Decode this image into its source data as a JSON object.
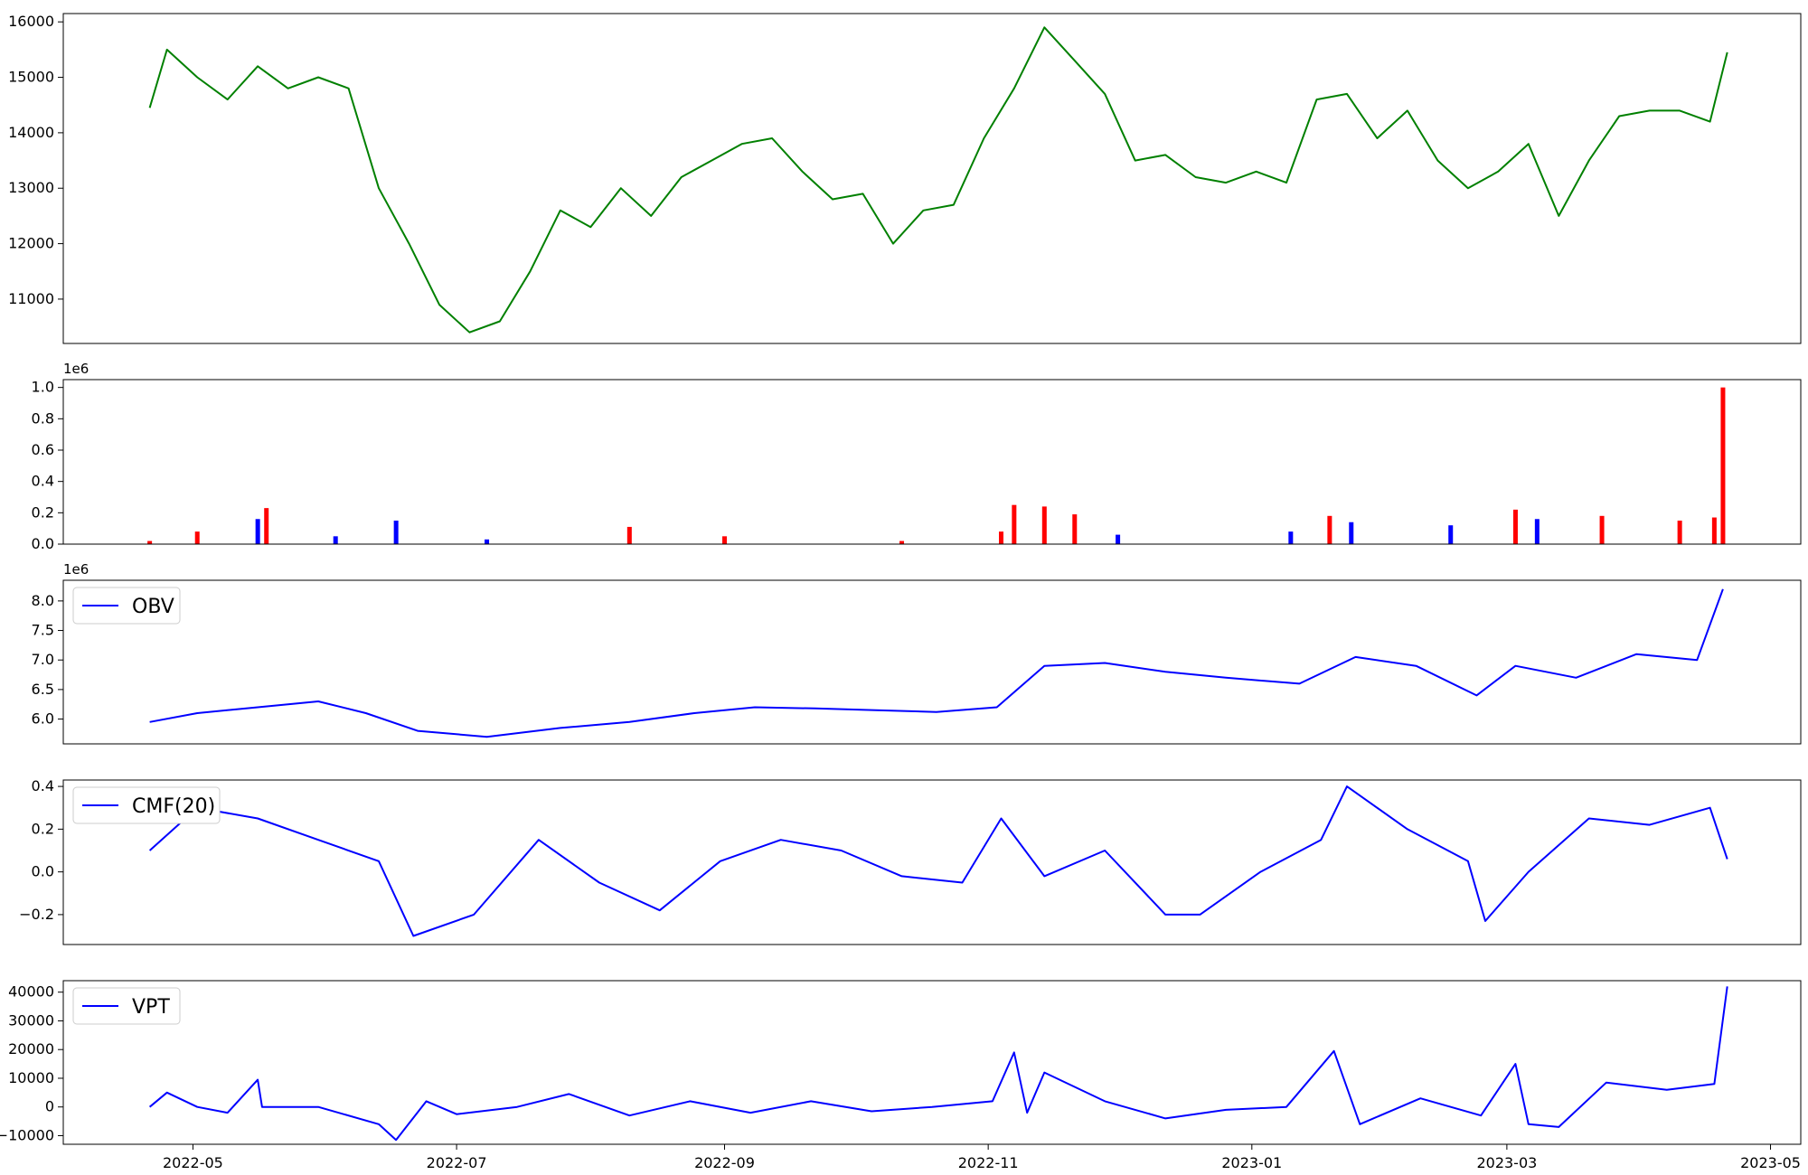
{
  "chart_data": [
    {
      "type": "line",
      "name": "price",
      "color": "#008000",
      "ylim": [
        10200,
        16150
      ],
      "yticks": [
        11000,
        12000,
        13000,
        14000,
        15000,
        16000
      ],
      "ytick_labels": [
        "11000",
        "12000",
        "13000",
        "14000",
        "15000",
        "16000"
      ],
      "x": [
        "2022-04-21",
        "2022-04-25",
        "2022-05-02",
        "2022-05-09",
        "2022-05-16",
        "2022-05-23",
        "2022-05-30",
        "2022-06-06",
        "2022-06-13",
        "2022-06-20",
        "2022-06-27",
        "2022-07-04",
        "2022-07-11",
        "2022-07-18",
        "2022-07-25",
        "2022-08-01",
        "2022-08-08",
        "2022-08-15",
        "2022-08-22",
        "2022-08-29",
        "2022-09-05",
        "2022-09-12",
        "2022-09-19",
        "2022-09-26",
        "2022-10-03",
        "2022-10-10",
        "2022-10-17",
        "2022-10-24",
        "2022-10-31",
        "2022-11-07",
        "2022-11-14",
        "2022-11-21",
        "2022-11-28",
        "2022-12-05",
        "2022-12-12",
        "2022-12-19",
        "2022-12-26",
        "2023-01-02",
        "2023-01-09",
        "2023-01-16",
        "2023-01-23",
        "2023-01-30",
        "2023-02-06",
        "2023-02-13",
        "2023-02-20",
        "2023-02-27",
        "2023-03-06",
        "2023-03-13",
        "2023-03-20",
        "2023-03-27",
        "2023-04-03",
        "2023-04-10",
        "2023-04-17",
        "2023-04-21"
      ],
      "values": [
        14450,
        15500,
        15000,
        14600,
        15200,
        14800,
        15000,
        14800,
        13000,
        12000,
        10900,
        10400,
        10600,
        11500,
        12600,
        12300,
        13000,
        12500,
        13200,
        13500,
        13800,
        13900,
        13300,
        12800,
        12900,
        12000,
        12600,
        12700,
        13900,
        14800,
        15900,
        15300,
        14700,
        13500,
        13600,
        13200,
        13100,
        13300,
        13100,
        14600,
        14700,
        13900,
        14400,
        13500,
        13000,
        13300,
        13800,
        12500,
        13500,
        14300,
        14400,
        14400,
        14200,
        15450
      ]
    },
    {
      "type": "bar",
      "name": "volume",
      "scale_label": "1e6",
      "ylim": [
        0,
        1.05
      ],
      "yticks": [
        0,
        0.2,
        0.4,
        0.6,
        0.8,
        1.0
      ],
      "ytick_labels": [
        "0.0",
        "0.2",
        "0.4",
        "0.6",
        "0.8",
        "1.0"
      ],
      "colors": {
        "up": "#ff0000",
        "down": "#0000ff"
      },
      "x": [
        "2022-04-21",
        "2022-05-02",
        "2022-05-16",
        "2022-05-18",
        "2022-06-03",
        "2022-06-17",
        "2022-07-08",
        "2022-08-10",
        "2022-09-01",
        "2022-10-12",
        "2022-11-04",
        "2022-11-07",
        "2022-11-14",
        "2022-11-21",
        "2022-12-01",
        "2023-01-10",
        "2023-01-19",
        "2023-01-24",
        "2023-02-16",
        "2023-03-03",
        "2023-03-08",
        "2023-03-23",
        "2023-04-10",
        "2023-04-18",
        "2023-04-20"
      ],
      "values": [
        0.02,
        0.08,
        0.16,
        0.23,
        0.05,
        0.15,
        0.03,
        0.11,
        0.05,
        0.02,
        0.08,
        0.25,
        0.24,
        0.19,
        0.06,
        0.08,
        0.18,
        0.14,
        0.12,
        0.22,
        0.16,
        0.18,
        0.15,
        0.17,
        1.0
      ],
      "dir": [
        "up",
        "up",
        "down",
        "up",
        "down",
        "down",
        "down",
        "up",
        "up",
        "up",
        "up",
        "up",
        "up",
        "up",
        "down",
        "down",
        "up",
        "down",
        "down",
        "up",
        "down",
        "up",
        "up",
        "up",
        "up"
      ]
    },
    {
      "type": "line",
      "name": "OBV",
      "legend": "OBV",
      "scale_label": "1e6",
      "color": "#0000ff",
      "ylim": [
        5.58,
        8.35
      ],
      "yticks": [
        6.0,
        6.5,
        7.0,
        7.5,
        8.0
      ],
      "ytick_labels": [
        "6.0",
        "6.5",
        "7.0",
        "7.5",
        "8.0"
      ],
      "x": [
        "2022-04-21",
        "2022-05-02",
        "2022-05-16",
        "2022-05-30",
        "2022-06-10",
        "2022-06-22",
        "2022-07-08",
        "2022-07-25",
        "2022-08-10",
        "2022-08-25",
        "2022-09-08",
        "2022-09-22",
        "2022-10-06",
        "2022-10-20",
        "2022-11-03",
        "2022-11-14",
        "2022-11-28",
        "2022-12-12",
        "2022-12-26",
        "2023-01-12",
        "2023-01-25",
        "2023-02-08",
        "2023-02-22",
        "2023-03-03",
        "2023-03-17",
        "2023-03-31",
        "2023-04-14",
        "2023-04-20"
      ],
      "values": [
        5.95,
        6.1,
        6.2,
        6.3,
        6.1,
        5.8,
        5.7,
        5.85,
        5.95,
        6.1,
        6.2,
        6.18,
        6.15,
        6.12,
        6.2,
        6.9,
        6.95,
        6.8,
        6.7,
        6.6,
        7.05,
        6.9,
        6.4,
        6.9,
        6.7,
        7.1,
        7.0,
        8.2
      ]
    },
    {
      "type": "line",
      "name": "CMF",
      "legend": "CMF(20)",
      "color": "#0000ff",
      "ylim": [
        -0.34,
        0.43
      ],
      "yticks": [
        -0.2,
        0.0,
        0.2,
        0.4
      ],
      "ytick_labels": [
        "−0.2",
        "0.0",
        "0.2",
        "0.4"
      ],
      "x": [
        "2022-04-21",
        "2022-05-02",
        "2022-05-16",
        "2022-05-30",
        "2022-06-13",
        "2022-06-21",
        "2022-07-05",
        "2022-07-20",
        "2022-08-03",
        "2022-08-17",
        "2022-08-31",
        "2022-09-14",
        "2022-09-28",
        "2022-10-12",
        "2022-10-26",
        "2022-11-04",
        "2022-11-14",
        "2022-11-28",
        "2022-12-12",
        "2022-12-20",
        "2023-01-03",
        "2023-01-17",
        "2023-01-23",
        "2023-02-06",
        "2023-02-20",
        "2023-02-24",
        "2023-03-06",
        "2023-03-20",
        "2023-04-03",
        "2023-04-17",
        "2023-04-21"
      ],
      "values": [
        0.1,
        0.3,
        0.25,
        0.15,
        0.05,
        -0.3,
        -0.2,
        0.15,
        -0.05,
        -0.18,
        0.05,
        0.15,
        0.1,
        -0.02,
        -0.05,
        0.25,
        -0.02,
        0.1,
        -0.2,
        -0.2,
        0.0,
        0.15,
        0.4,
        0.2,
        0.05,
        -0.23,
        0.0,
        0.25,
        0.22,
        0.3,
        0.06
      ]
    },
    {
      "type": "line",
      "name": "VPT",
      "legend": "VPT",
      "color": "#0000ff",
      "ylim": [
        -13000,
        44000
      ],
      "yticks": [
        -10000,
        0,
        10000,
        20000,
        30000,
        40000
      ],
      "ytick_labels": [
        "−10000",
        "0",
        "10000",
        "20000",
        "30000",
        "40000"
      ],
      "x": [
        "2022-04-21",
        "2022-04-25",
        "2022-05-02",
        "2022-05-09",
        "2022-05-16",
        "2022-05-17",
        "2022-05-30",
        "2022-06-13",
        "2022-06-17",
        "2022-06-24",
        "2022-07-01",
        "2022-07-15",
        "2022-07-27",
        "2022-08-10",
        "2022-08-24",
        "2022-09-07",
        "2022-09-21",
        "2022-10-05",
        "2022-10-19",
        "2022-11-02",
        "2022-11-07",
        "2022-11-10",
        "2022-11-14",
        "2022-11-28",
        "2022-12-12",
        "2022-12-26",
        "2023-01-09",
        "2023-01-20",
        "2023-01-26",
        "2023-02-09",
        "2023-02-23",
        "2023-03-03",
        "2023-03-06",
        "2023-03-13",
        "2023-03-24",
        "2023-04-07",
        "2023-04-18",
        "2023-04-21"
      ],
      "values": [
        0,
        5000,
        0,
        -2000,
        9500,
        0,
        0,
        -6000,
        -11500,
        2000,
        -2500,
        0,
        4500,
        -3000,
        2000,
        -2000,
        2000,
        -1500,
        0,
        2000,
        19000,
        -2000,
        12000,
        2000,
        -4000,
        -1000,
        0,
        19500,
        -6000,
        3000,
        -3000,
        15000,
        -6000,
        -7000,
        8500,
        6000,
        8000,
        42000
      ]
    },
    {
      "type": "axis",
      "name": "shared-date-axis",
      "ticks": [
        "2022-05-01",
        "2022-07-01",
        "2022-09-01",
        "2022-11-01",
        "2023-01-01",
        "2023-03-01",
        "2023-05-01"
      ],
      "tick_labels": [
        "2022-05",
        "2022-07",
        "2022-09",
        "2022-11",
        "2023-01",
        "2023-03",
        "2023-05"
      ]
    }
  ]
}
